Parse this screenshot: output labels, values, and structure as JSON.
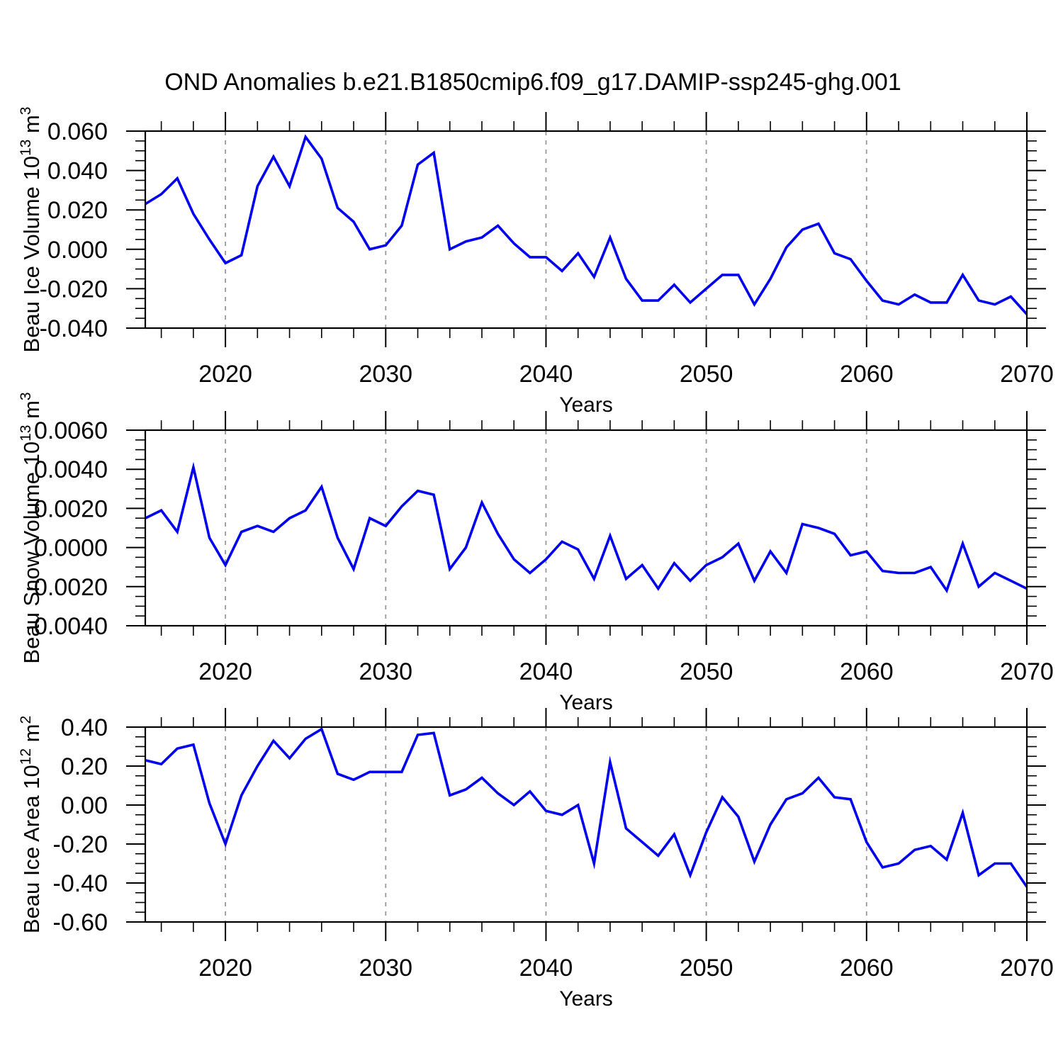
{
  "title": "OND Anomalies b.e21.B1850cmip6.f09_g17.DAMIP-ssp245-ghg.001",
  "colors": {
    "line": "#0000EE",
    "grid": "#999999",
    "axis": "#000000"
  },
  "chart_meta": {
    "xlabel": "Years",
    "x_start": 2015,
    "x_end": 2070,
    "x_major_ticks": [
      2020,
      2030,
      2040,
      2050,
      2060,
      2070
    ],
    "x_minor_step": 2,
    "grid_years": [
      2020,
      2030,
      2040,
      2050,
      2060
    ],
    "legend": "none",
    "grid": "vertical-dashed-decades"
  },
  "x_years": [
    2015,
    2016,
    2017,
    2018,
    2019,
    2020,
    2021,
    2022,
    2023,
    2024,
    2025,
    2026,
    2027,
    2028,
    2029,
    2030,
    2031,
    2032,
    2033,
    2034,
    2035,
    2036,
    2037,
    2038,
    2039,
    2040,
    2041,
    2042,
    2043,
    2044,
    2045,
    2046,
    2047,
    2048,
    2049,
    2050,
    2051,
    2052,
    2053,
    2054,
    2055,
    2056,
    2057,
    2058,
    2059,
    2060,
    2061,
    2062,
    2063,
    2064,
    2065,
    2066,
    2067,
    2068,
    2069,
    2070
  ],
  "chart_data": [
    {
      "type": "line",
      "id": "beau-ice-volume",
      "ylabel": "Beau Ice Volume 10^13 m^3",
      "ylabel_parts": [
        [
          "Beau Ice Volume 10",
          false
        ],
        [
          "13",
          true
        ],
        [
          " m",
          false
        ],
        [
          "3",
          true
        ]
      ],
      "ylim": [
        -0.04,
        0.06
      ],
      "y_major_step": 0.02,
      "y_minor_step": 0.005,
      "ytick_values": [
        0.06,
        0.04,
        0.02,
        0.0,
        -0.02,
        -0.04
      ],
      "ytick_labels": [
        "0.060",
        "0.040",
        "0.020",
        "0.000",
        "-0.020",
        "-0.040"
      ],
      "values": [
        0.023,
        0.028,
        0.036,
        0.018,
        0.005,
        -0.007,
        -0.003,
        0.032,
        0.047,
        0.032,
        0.057,
        0.046,
        0.021,
        0.014,
        0.0,
        0.002,
        0.012,
        0.043,
        0.049,
        0.0,
        0.004,
        0.006,
        0.012,
        0.003,
        -0.004,
        -0.004,
        -0.011,
        -0.002,
        -0.014,
        0.006,
        -0.015,
        -0.026,
        -0.026,
        -0.018,
        -0.027,
        -0.02,
        -0.013,
        -0.013,
        -0.028,
        -0.015,
        0.001,
        0.01,
        0.013,
        -0.002,
        -0.005,
        -0.016,
        -0.026,
        -0.028,
        -0.023,
        -0.027,
        -0.027,
        -0.013,
        -0.026,
        -0.028,
        -0.024,
        -0.033
      ]
    },
    {
      "type": "line",
      "id": "beau-snow-volume",
      "ylabel": "Beau Snow Volume 10^13 m^3",
      "ylabel_parts": [
        [
          "Beau Snow Volume 10",
          false
        ],
        [
          "13",
          true
        ],
        [
          " m",
          false
        ],
        [
          "3",
          true
        ]
      ],
      "ylim": [
        -0.004,
        0.006
      ],
      "y_major_step": 0.002,
      "y_minor_step": 0.0005,
      "ytick_values": [
        0.006,
        0.004,
        0.002,
        0.0,
        -0.002,
        -0.004
      ],
      "ytick_labels": [
        "0.0060",
        "0.0040",
        "0.0020",
        "0.0000",
        "-0.0020",
        "-0.0040"
      ],
      "values": [
        0.0015,
        0.0019,
        0.0008,
        0.0041,
        0.0005,
        -0.0009,
        0.0008,
        0.0011,
        0.0008,
        0.0015,
        0.0019,
        0.0031,
        0.0005,
        -0.0011,
        0.0015,
        0.0011,
        0.0021,
        0.0029,
        0.0027,
        -0.0011,
        0.0,
        0.0023,
        0.0007,
        -0.0006,
        -0.0013,
        -0.0006,
        0.0003,
        -0.0001,
        -0.0016,
        0.0006,
        -0.0016,
        -0.0009,
        -0.0021,
        -0.0008,
        -0.0017,
        -0.0009,
        -0.0005,
        0.0002,
        -0.0017,
        -0.0002,
        -0.0013,
        0.0012,
        0.001,
        0.0007,
        -0.0004,
        -0.0002,
        -0.0012,
        -0.0013,
        -0.0013,
        -0.001,
        -0.0022,
        0.0002,
        -0.002,
        -0.0013,
        -0.0017,
        -0.0021
      ]
    },
    {
      "type": "line",
      "id": "beau-ice-area",
      "ylabel": "Beau Ice Area 10^12 m^2",
      "ylabel_parts": [
        [
          "Beau Ice Area 10",
          false
        ],
        [
          "12",
          true
        ],
        [
          " m",
          false
        ],
        [
          "2",
          true
        ]
      ],
      "ylim": [
        -0.6,
        0.4
      ],
      "y_major_step": 0.2,
      "y_minor_step": 0.05,
      "ytick_values": [
        0.4,
        0.2,
        0.0,
        -0.2,
        -0.4,
        -0.6
      ],
      "ytick_labels": [
        "0.40",
        "0.20",
        "0.00",
        "-0.20",
        "-0.40",
        "-0.60"
      ],
      "values": [
        0.23,
        0.21,
        0.29,
        0.31,
        0.01,
        -0.2,
        0.05,
        0.2,
        0.33,
        0.24,
        0.34,
        0.39,
        0.16,
        0.13,
        0.17,
        0.17,
        0.17,
        0.36,
        0.37,
        0.05,
        0.08,
        0.14,
        0.06,
        0.0,
        0.07,
        -0.03,
        -0.05,
        0.0,
        -0.3,
        0.22,
        -0.12,
        -0.19,
        -0.26,
        -0.15,
        -0.36,
        -0.14,
        0.04,
        -0.06,
        -0.29,
        -0.1,
        0.03,
        0.06,
        0.14,
        0.04,
        0.03,
        -0.19,
        -0.32,
        -0.3,
        -0.23,
        -0.21,
        -0.28,
        -0.04,
        -0.36,
        -0.3,
        -0.3,
        -0.42
      ]
    }
  ]
}
